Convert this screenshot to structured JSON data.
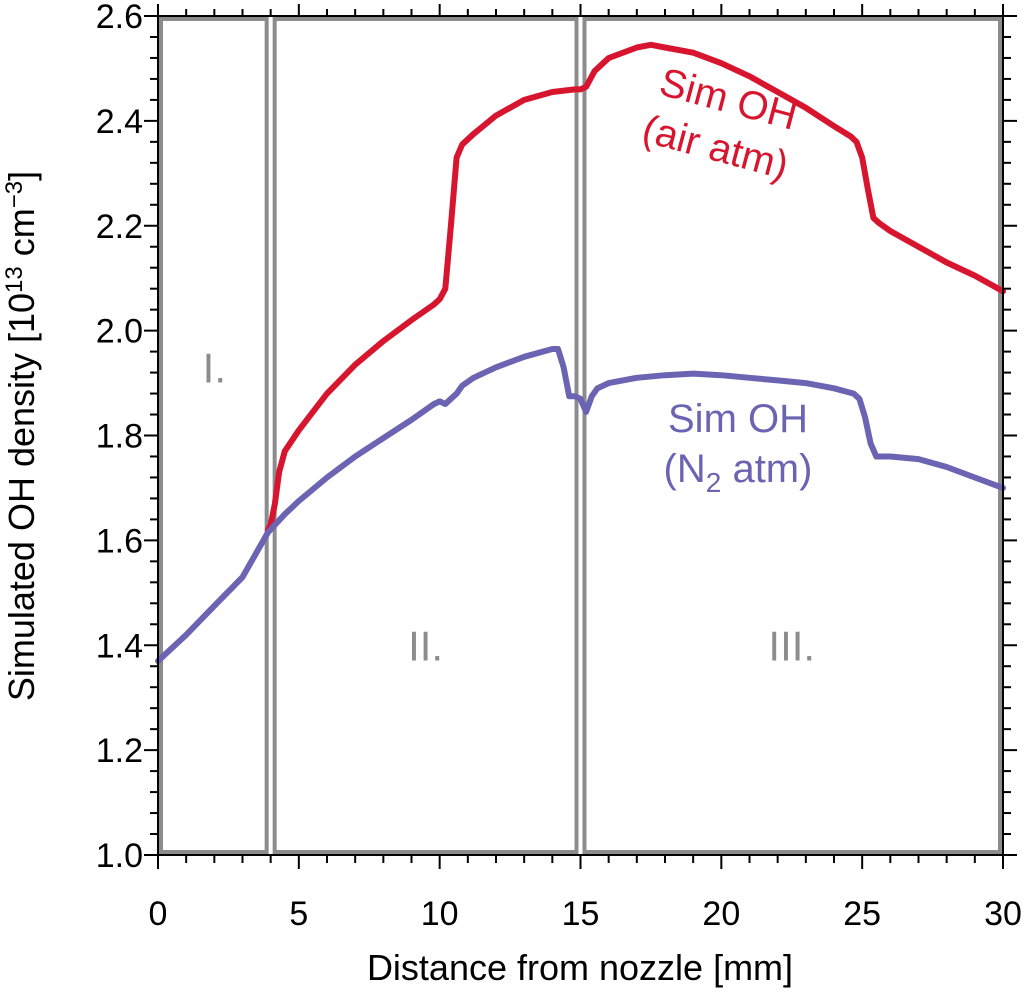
{
  "chart_data": {
    "type": "line",
    "xlabel": "Distance from nozzle [mm]",
    "ylabel_main": "Simulated OH density [10",
    "ylabel_exp1": "13",
    "ylabel_mid": " cm",
    "ylabel_exp2": "−3",
    "ylabel_end": "]",
    "xlim": [
      0,
      30
    ],
    "ylim": [
      1.0,
      2.6
    ],
    "xticks": [
      "0",
      "5",
      "10",
      "15",
      "20",
      "25",
      "30"
    ],
    "yticks": [
      "1.0",
      "1.2",
      "1.4",
      "1.6",
      "1.8",
      "2.0",
      "2.2",
      "2.4",
      "2.6"
    ],
    "regions": [
      {
        "label": "I.",
        "x_start": 0,
        "x_end": 4,
        "label_x": 2,
        "label_y": 1.93
      },
      {
        "label": "II.",
        "x_start": 4,
        "x_end": 15,
        "label_x": 9.5,
        "label_y": 1.4
      },
      {
        "label": "III.",
        "x_start": 15,
        "x_end": 30,
        "label_x": 22.5,
        "label_y": 1.4
      }
    ],
    "region_color": "#8c8c8c",
    "series": [
      {
        "label_line1": "Sim OH",
        "label_line2": "(air atm)",
        "color": "#d8152f",
        "x": [
          3.9,
          4.0,
          4.15,
          4.3,
          4.5,
          5.0,
          6.0,
          7.0,
          8.0,
          9.0,
          9.8,
          10.0,
          10.2,
          10.4,
          10.6,
          10.8,
          11.2,
          12.0,
          13.0,
          14.0,
          14.8,
          15.0,
          15.2,
          15.5,
          16.0,
          17.0,
          17.5,
          18.0,
          19.0,
          20.0,
          21.0,
          22.0,
          23.0,
          24.0,
          24.6,
          24.8,
          25.0,
          25.2,
          25.4,
          25.6,
          26.0,
          27.0,
          28.0,
          29.0,
          30.0
        ],
        "y": [
          1.62,
          1.63,
          1.67,
          1.73,
          1.77,
          1.81,
          1.88,
          1.935,
          1.98,
          2.02,
          2.05,
          2.06,
          2.08,
          2.2,
          2.33,
          2.355,
          2.375,
          2.41,
          2.44,
          2.455,
          2.46,
          2.46,
          2.465,
          2.495,
          2.52,
          2.54,
          2.545,
          2.54,
          2.53,
          2.51,
          2.485,
          2.455,
          2.425,
          2.39,
          2.37,
          2.36,
          2.33,
          2.27,
          2.215,
          2.205,
          2.19,
          2.16,
          2.13,
          2.105,
          2.075
        ]
      },
      {
        "label_line1": "Sim OH",
        "label_line2_pre": "(N",
        "label_line2_sub": "2",
        "label_line2_post": " atm)",
        "color": "#6b64b3",
        "x": [
          0,
          0.5,
          1.0,
          2.0,
          3.0,
          3.9,
          4.5,
          5.0,
          6.0,
          7.0,
          8.0,
          9.0,
          9.8,
          10.0,
          10.2,
          10.4,
          10.6,
          10.8,
          11.2,
          12.0,
          13.0,
          14.0,
          14.2,
          14.4,
          14.6,
          14.8,
          15.0,
          15.2,
          15.4,
          15.6,
          16.0,
          17.0,
          18.0,
          19.0,
          20.0,
          21.0,
          22.0,
          23.0,
          24.0,
          24.7,
          24.9,
          25.1,
          25.3,
          25.5,
          25.8,
          26.0,
          27.0,
          28.0,
          29.0,
          30.0
        ],
        "y": [
          1.37,
          1.395,
          1.42,
          1.475,
          1.53,
          1.615,
          1.65,
          1.675,
          1.72,
          1.76,
          1.795,
          1.83,
          1.86,
          1.865,
          1.86,
          1.87,
          1.88,
          1.895,
          1.91,
          1.93,
          1.95,
          1.965,
          1.965,
          1.93,
          1.875,
          1.875,
          1.87,
          1.845,
          1.875,
          1.89,
          1.9,
          1.91,
          1.915,
          1.918,
          1.915,
          1.91,
          1.905,
          1.9,
          1.89,
          1.88,
          1.87,
          1.835,
          1.785,
          1.76,
          1.76,
          1.76,
          1.755,
          1.74,
          1.72,
          1.7
        ]
      }
    ]
  }
}
